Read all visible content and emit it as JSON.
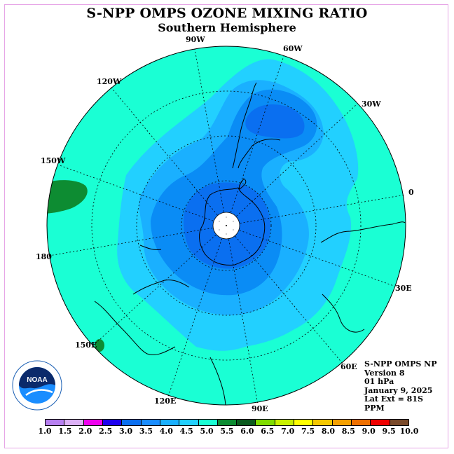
{
  "title": "S-NPP OMPS OZONE MIXING RATIO",
  "subtitle": "Southern Hemisphere",
  "longitude_labels": [
    "90W",
    "60W",
    "120W",
    "30W",
    "150W",
    "0",
    "180",
    "30E",
    "150E",
    "60E",
    "120E",
    "90E"
  ],
  "info": {
    "instrument": "S-NPP OMPS NP",
    "version": "Version 8",
    "pressure": "01 hPa",
    "date": "January 9, 2025",
    "lat_ext": "Lat Ext = 81S",
    "units": "PPM"
  },
  "logo_text": "NOAA",
  "colorbar": {
    "colors": [
      "#b77ff0",
      "#dcb0f5",
      "#ef00ef",
      "#1d00ef",
      "#0a6ff0",
      "#1a8dff",
      "#1ab0ff",
      "#22d0ff",
      "#1affd4",
      "#0d8c32",
      "#0a5a1e",
      "#7fdc00",
      "#c8f000",
      "#ffff00",
      "#f5c800",
      "#f5a000",
      "#f07000",
      "#f00000",
      "#7a4a2a"
    ],
    "ticks": [
      "1.0",
      "1.5",
      "2.0",
      "2.5",
      "3.0",
      "3.5",
      "4.0",
      "4.5",
      "5.0",
      "5.5",
      "6.0",
      "6.5",
      "7.0",
      "7.5",
      "8.0",
      "8.5",
      "9.0",
      "9.5",
      "10.0"
    ]
  }
}
